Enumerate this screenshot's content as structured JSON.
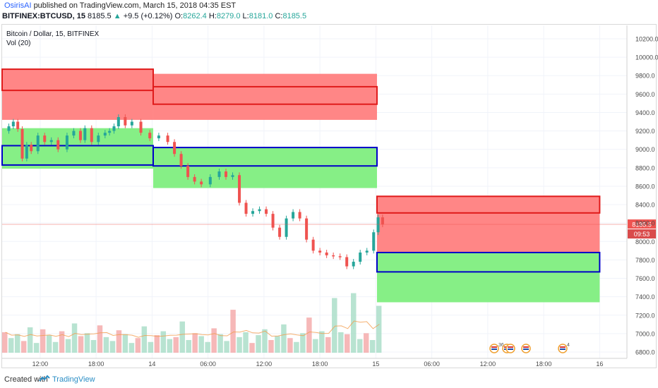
{
  "header": {
    "user": "OsirisAI",
    "published_text": "published on TradingView.com, March 15, 2018 04:35 EST",
    "symbol": "BITFINEX:BTCUSD, 15",
    "last": "8185.5",
    "change_arrow": "▲",
    "change": "+9.5 (+0.12%)",
    "o_label": "O:",
    "o_value": "8262.4",
    "h_label": "H:",
    "h_value": "8279.0",
    "l_label": "L:",
    "l_value": "8181.0",
    "c_label": "C:",
    "c_value": "8185.5"
  },
  "legend": {
    "title": "Bitcoin / Dollar, 15, BITFINEX",
    "volume": "Vol (20)"
  },
  "price_axis": {
    "labels": [
      "10200.0",
      "10000.0",
      "9800.0",
      "9600.0",
      "9400.0",
      "9200.0",
      "9000.0",
      "8800.0",
      "8600.0",
      "8400.0",
      "8200.0",
      "8000.0",
      "7800.0",
      "7600.0",
      "7400.0",
      "7200.0",
      "7000.0",
      "6800.0"
    ],
    "last_price_tag": "8185.5",
    "countdown_tag": "09:53"
  },
  "time_axis": {
    "labels": [
      "12:00",
      "18:00",
      "14",
      "06:00",
      "12:00",
      "18:00",
      "15",
      "06:00",
      "12:00",
      "18:00",
      "16"
    ]
  },
  "event_badges": [
    "36",
    "",
    "",
    " ",
    "4"
  ],
  "colors": {
    "up": "#26a69a",
    "down": "#ef5350",
    "supply_fill": "#ff8080",
    "supply_border": "#e01b1b",
    "demand_fill": "#80ee80",
    "demand_border": "#0000c8",
    "last_price": "#ef5350"
  },
  "footer": {
    "created_with": "Created with",
    "brand": "TradingView"
  },
  "chart_data": {
    "type": "candlestick",
    "x_labels": [
      "12:00",
      "18:00",
      "14",
      "06:00",
      "12:00",
      "18:00",
      "15",
      "06:00",
      "12:00",
      "18:00",
      "16"
    ],
    "ylim": [
      6750,
      10300
    ],
    "price_path": [
      [
        0,
        9200
      ],
      [
        0.03,
        9250
      ],
      [
        0.05,
        9300
      ],
      [
        0.07,
        9220
      ],
      [
        0.09,
        8900
      ],
      [
        0.11,
        9050
      ],
      [
        0.13,
        8980
      ],
      [
        0.16,
        9150
      ],
      [
        0.19,
        9080
      ],
      [
        0.22,
        9100
      ],
      [
        0.25,
        9000
      ],
      [
        0.29,
        9150
      ],
      [
        0.32,
        9200
      ],
      [
        0.35,
        9100
      ],
      [
        0.37,
        9230
      ],
      [
        0.4,
        9080
      ],
      [
        0.43,
        9150
      ],
      [
        0.46,
        9180
      ],
      [
        0.48,
        9200
      ],
      [
        0.5,
        9250
      ],
      [
        0.52,
        9350
      ],
      [
        0.55,
        9260
      ],
      [
        0.58,
        9300
      ],
      [
        0.62,
        9180
      ],
      [
        0.66,
        9120
      ],
      [
        0.7,
        9150
      ],
      [
        0.74,
        9080
      ],
      [
        0.77,
        8950
      ],
      [
        0.8,
        8820
      ],
      [
        0.83,
        8700
      ],
      [
        0.86,
        8650
      ],
      [
        0.89,
        8620
      ],
      [
        0.93,
        8700
      ],
      [
        0.97,
        8760
      ],
      [
        1.0,
        8700
      ],
      [
        1.03,
        8720
      ],
      [
        1.06,
        8420
      ],
      [
        1.09,
        8300
      ],
      [
        1.12,
        8330
      ],
      [
        1.15,
        8350
      ],
      [
        1.18,
        8300
      ],
      [
        1.21,
        8150
      ],
      [
        1.24,
        8050
      ],
      [
        1.27,
        8250
      ],
      [
        1.3,
        8320
      ],
      [
        1.33,
        8250
      ],
      [
        1.36,
        8020
      ],
      [
        1.39,
        7900
      ],
      [
        1.42,
        7880
      ],
      [
        1.45,
        7850
      ],
      [
        1.48,
        7840
      ],
      [
        1.51,
        7830
      ],
      [
        1.54,
        7730
      ],
      [
        1.57,
        7780
      ],
      [
        1.6,
        7880
      ],
      [
        1.63,
        7900
      ],
      [
        1.66,
        8100
      ],
      [
        1.68,
        8262
      ],
      [
        1.7,
        8185
      ]
    ],
    "volume_series": [
      2.1,
      1.5,
      1.9,
      1.2,
      2.6,
      1.0,
      2.4,
      1.8,
      1.1,
      2.2,
      1.4,
      3.0,
      1.7,
      2.0,
      1.3,
      2.8,
      1.6,
      1.2,
      2.3,
      1.9,
      1.0,
      1.5,
      2.7,
      1.1,
      1.8,
      2.2,
      1.4,
      1.6,
      3.2,
      1.3,
      2.0,
      1.7,
      1.1,
      2.5,
      1.9,
      1.2,
      4.4,
      1.6,
      2.1,
      1.0,
      1.8,
      2.4,
      1.3,
      1.7,
      2.9,
      1.5,
      1.1,
      2.0,
      3.6,
      1.4,
      2.2,
      1.6,
      5.6,
      2.1,
      1.9,
      6.1,
      1.4,
      2.0,
      1.3,
      4.8
    ],
    "volume_ma_label": "Vol (20)",
    "zones": [
      {
        "kind": "supply",
        "label": "",
        "top": 9870,
        "bottom": 9320
      },
      {
        "kind": "demand",
        "label": "",
        "top": 9230,
        "bottom": 8790
      },
      {
        "kind": "supply",
        "label": "",
        "top": 9820,
        "bottom": 9320
      },
      {
        "kind": "demand",
        "label": "",
        "top": 9020,
        "bottom": 8580
      },
      {
        "kind": "supply",
        "label": "",
        "top": 8490,
        "bottom": 7870
      },
      {
        "kind": "demand",
        "label": "",
        "top": 7880,
        "bottom": 7340
      }
    ],
    "last_price": 8185.5
  }
}
